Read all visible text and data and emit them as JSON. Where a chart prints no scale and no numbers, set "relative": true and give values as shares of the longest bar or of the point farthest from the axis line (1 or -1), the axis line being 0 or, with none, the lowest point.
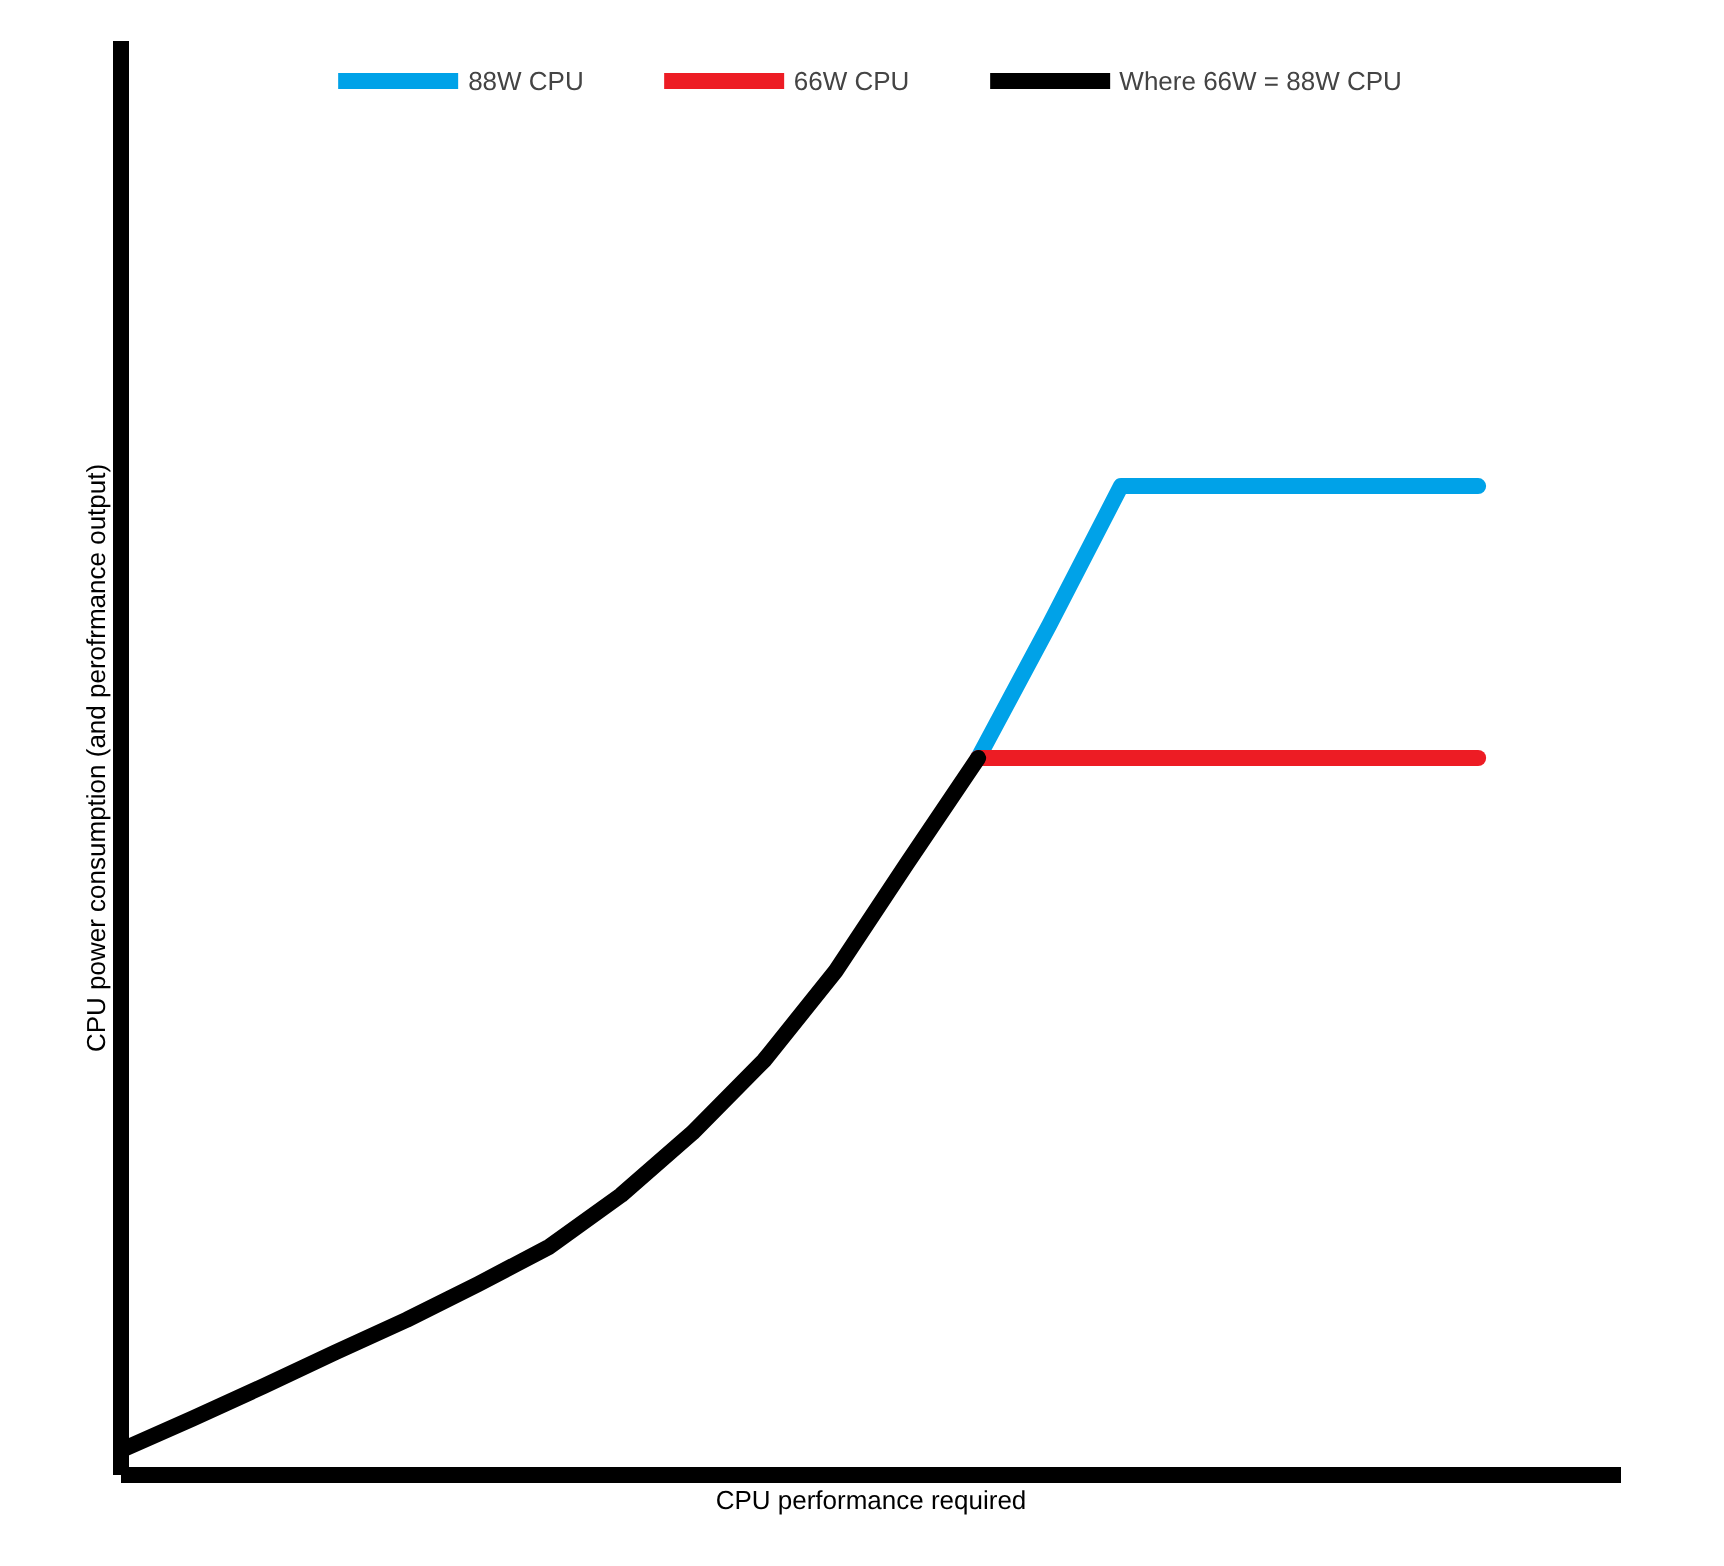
{
  "chart_data": {
    "type": "line",
    "relative": true,
    "xlabel": "CPU performance required",
    "ylabel": "CPU power consumption (and perofrmance output)",
    "legend": "top",
    "marker": "none",
    "line_style": "solid",
    "categories": [
      null,
      null,
      null,
      null,
      null,
      null,
      null,
      null,
      null,
      null,
      null,
      null,
      null,
      null,
      null,
      null,
      null,
      null,
      null,
      null
    ],
    "series": [
      {
        "name": "88W CPU",
        "color": "#00a2e8",
        "values": [
          null,
          null,
          null,
          null,
          null,
          null,
          null,
          null,
          null,
          null,
          null,
          null,
          0.725,
          0.86,
          1.0,
          1.0,
          1.0,
          1.0,
          1.0,
          1.0
        ]
      },
      {
        "name": "66W CPU",
        "color": "#ed1c24",
        "values": [
          null,
          null,
          null,
          null,
          null,
          null,
          null,
          null,
          null,
          null,
          null,
          null,
          0.725,
          0.725,
          0.725,
          0.725,
          0.725,
          0.725,
          0.725,
          0.725
        ]
      },
      {
        "name": "Where 66W = 88W CPU",
        "color": "#000000",
        "values": [
          0.025,
          0.057,
          0.09,
          0.124,
          0.157,
          0.193,
          0.231,
          0.283,
          0.346,
          0.419,
          0.509,
          0.618,
          0.725,
          null,
          null,
          null,
          null,
          null,
          null,
          null
        ]
      }
    ]
  }
}
